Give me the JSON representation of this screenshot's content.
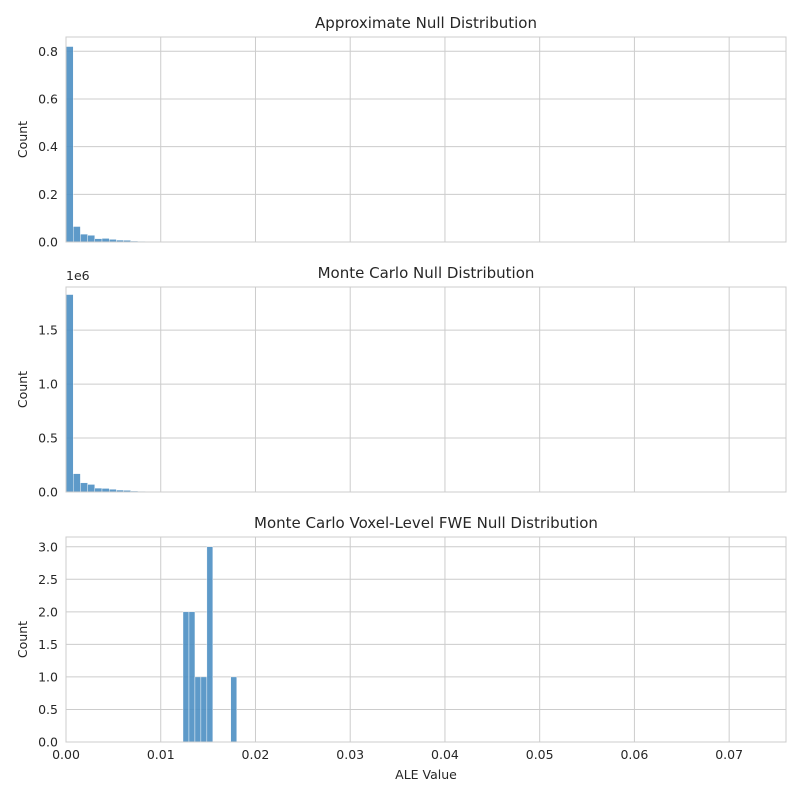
{
  "chart_data": [
    {
      "type": "bar",
      "title": "Approximate Null Distribution",
      "xlabel": "",
      "ylabel": "Count",
      "xlim": [
        0,
        0.076
      ],
      "ylim": [
        0,
        0.86
      ],
      "xticks": [
        "0.00",
        "0.01",
        "0.02",
        "0.03",
        "0.04",
        "0.05",
        "0.06",
        "0.07"
      ],
      "xtick_values": [
        0,
        0.01,
        0.02,
        0.03,
        0.04,
        0.05,
        0.06,
        0.07
      ],
      "show_xtick_labels": false,
      "yticks": [
        "0.0",
        "0.2",
        "0.4",
        "0.6",
        "0.8"
      ],
      "ytick_values": [
        0,
        0.2,
        0.4,
        0.6,
        0.8
      ],
      "offset_text": "",
      "grid": true,
      "bin_width": 0.00076,
      "bins": [
        {
          "x0": 0.0,
          "y": 0.82
        },
        {
          "x0": 0.00076,
          "y": 0.065
        },
        {
          "x0": 0.00152,
          "y": 0.033
        },
        {
          "x0": 0.00228,
          "y": 0.028
        },
        {
          "x0": 0.00304,
          "y": 0.014
        },
        {
          "x0": 0.0038,
          "y": 0.015
        },
        {
          "x0": 0.00456,
          "y": 0.011
        },
        {
          "x0": 0.00532,
          "y": 0.008
        },
        {
          "x0": 0.00608,
          "y": 0.007
        },
        {
          "x0": 0.00684,
          "y": 0.004
        },
        {
          "x0": 0.0076,
          "y": 0.003
        },
        {
          "x0": 0.00836,
          "y": 0.002
        },
        {
          "x0": 0.00912,
          "y": 0.001
        }
      ]
    },
    {
      "type": "bar",
      "title": "Monte Carlo Null Distribution",
      "xlabel": "",
      "ylabel": "Count",
      "xlim": [
        0,
        0.076
      ],
      "ylim": [
        0,
        1.9
      ],
      "xticks": [
        "0.00",
        "0.01",
        "0.02",
        "0.03",
        "0.04",
        "0.05",
        "0.06",
        "0.07"
      ],
      "xtick_values": [
        0,
        0.01,
        0.02,
        0.03,
        0.04,
        0.05,
        0.06,
        0.07
      ],
      "show_xtick_labels": false,
      "yticks": [
        "0.0",
        "0.5",
        "1.0",
        "1.5"
      ],
      "ytick_values": [
        0,
        0.5,
        1.0,
        1.5
      ],
      "offset_text": "1e6",
      "grid": true,
      "bin_width": 0.00076,
      "bins": [
        {
          "x0": 0.0,
          "y": 1.83
        },
        {
          "x0": 0.00076,
          "y": 0.17
        },
        {
          "x0": 0.00152,
          "y": 0.085
        },
        {
          "x0": 0.00228,
          "y": 0.07
        },
        {
          "x0": 0.00304,
          "y": 0.036
        },
        {
          "x0": 0.0038,
          "y": 0.033
        },
        {
          "x0": 0.00456,
          "y": 0.025
        },
        {
          "x0": 0.00532,
          "y": 0.018
        },
        {
          "x0": 0.00608,
          "y": 0.015
        },
        {
          "x0": 0.00684,
          "y": 0.009
        },
        {
          "x0": 0.0076,
          "y": 0.006
        },
        {
          "x0": 0.00836,
          "y": 0.004
        },
        {
          "x0": 0.00912,
          "y": 0.002
        }
      ]
    },
    {
      "type": "bar",
      "title": "Monte Carlo Voxel-Level FWE Null Distribution",
      "xlabel": "ALE Value",
      "ylabel": "Count",
      "xlim": [
        0,
        0.076
      ],
      "ylim": [
        0,
        3.15
      ],
      "xticks": [
        "0.00",
        "0.01",
        "0.02",
        "0.03",
        "0.04",
        "0.05",
        "0.06",
        "0.07"
      ],
      "xtick_values": [
        0,
        0.01,
        0.02,
        0.03,
        0.04,
        0.05,
        0.06,
        0.07
      ],
      "show_xtick_labels": true,
      "yticks": [
        "0.0",
        "0.5",
        "1.0",
        "1.5",
        "2.0",
        "2.5",
        "3.0"
      ],
      "ytick_values": [
        0,
        0.5,
        1.0,
        1.5,
        2.0,
        2.5,
        3.0
      ],
      "offset_text": "",
      "grid": true,
      "bin_width": 0.00063,
      "bins": [
        {
          "x0": 0.01235,
          "y": 2
        },
        {
          "x0": 0.01298,
          "y": 2
        },
        {
          "x0": 0.01361,
          "y": 1
        },
        {
          "x0": 0.01424,
          "y": 1
        },
        {
          "x0": 0.01487,
          "y": 3
        },
        {
          "x0": 0.01739,
          "y": 1
        }
      ]
    }
  ]
}
